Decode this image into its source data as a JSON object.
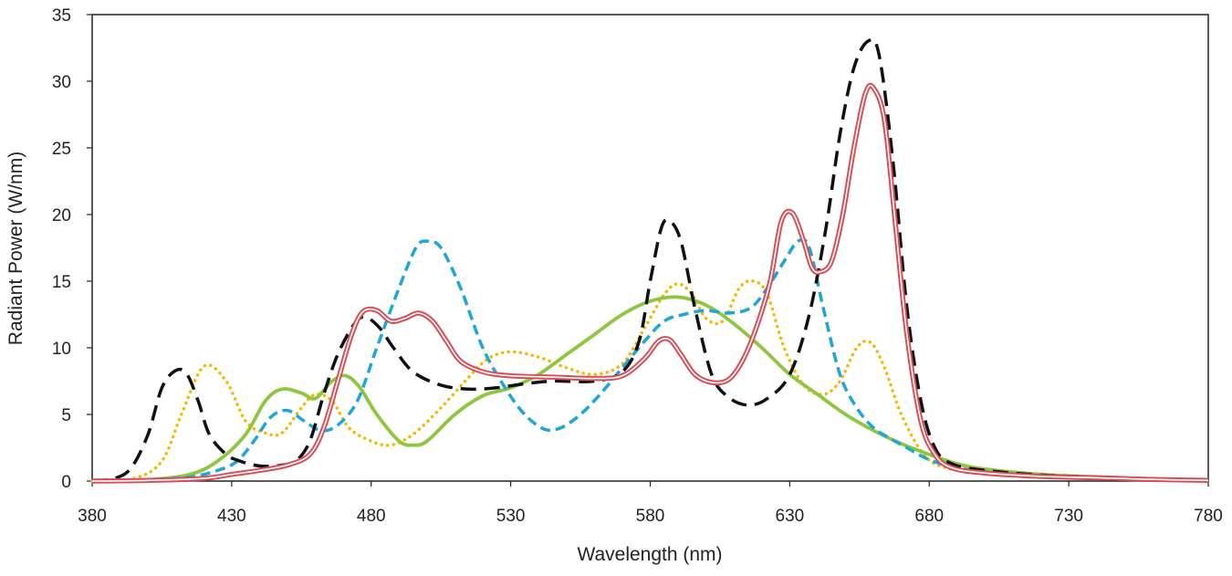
{
  "chart_data": {
    "type": "line",
    "title": "",
    "xlabel": "Wavelength (nm)",
    "ylabel": "Radiant Power (W/nm)",
    "xlim": [
      380,
      780
    ],
    "ylim": [
      0,
      35
    ],
    "xticks": [
      380,
      430,
      480,
      530,
      580,
      630,
      680,
      730,
      780
    ],
    "yticks": [
      0,
      5,
      10,
      15,
      20,
      25,
      30,
      35
    ],
    "grid": false,
    "legend": "none",
    "series": [
      {
        "color": "#f5b800",
        "dash": "dotted",
        "points": [
          [
            380,
            0
          ],
          [
            395,
            0.2
          ],
          [
            405,
            1.5
          ],
          [
            412,
            5
          ],
          [
            420,
            8.6
          ],
          [
            428,
            7.5
          ],
          [
            435,
            4.5
          ],
          [
            442,
            3.6
          ],
          [
            448,
            3.6
          ],
          [
            455,
            5.5
          ],
          [
            460,
            6.5
          ],
          [
            466,
            6
          ],
          [
            472,
            4
          ],
          [
            480,
            3
          ],
          [
            487,
            2.7
          ],
          [
            495,
            3.5
          ],
          [
            505,
            5.5
          ],
          [
            515,
            7.8
          ],
          [
            522,
            9.2
          ],
          [
            530,
            9.7
          ],
          [
            540,
            9.3
          ],
          [
            550,
            8.5
          ],
          [
            560,
            8
          ],
          [
            570,
            8.8
          ],
          [
            578,
            11.5
          ],
          [
            585,
            14
          ],
          [
            590,
            14.8
          ],
          [
            595,
            14
          ],
          [
            600,
            12.2
          ],
          [
            606,
            12
          ],
          [
            612,
            14.5
          ],
          [
            617,
            15
          ],
          [
            622,
            14
          ],
          [
            628,
            10
          ],
          [
            635,
            7.2
          ],
          [
            642,
            6.5
          ],
          [
            648,
            7.5
          ],
          [
            654,
            10
          ],
          [
            659,
            10.4
          ],
          [
            664,
            8.5
          ],
          [
            670,
            5
          ],
          [
            678,
            2
          ],
          [
            686,
            1
          ],
          [
            700,
            0.7
          ],
          [
            720,
            0.5
          ],
          [
            740,
            0.3
          ],
          [
            760,
            0.15
          ],
          [
            780,
            0.05
          ]
        ]
      },
      {
        "color": "#8dc63f",
        "dash": "solid",
        "points": [
          [
            380,
            0
          ],
          [
            400,
            0.1
          ],
          [
            415,
            0.5
          ],
          [
            425,
            1.5
          ],
          [
            435,
            3.5
          ],
          [
            442,
            6
          ],
          [
            448,
            6.9
          ],
          [
            455,
            6.6
          ],
          [
            460,
            6.2
          ],
          [
            466,
            7.5
          ],
          [
            471,
            7.9
          ],
          [
            476,
            7
          ],
          [
            482,
            5
          ],
          [
            490,
            3
          ],
          [
            495,
            2.7
          ],
          [
            500,
            3
          ],
          [
            510,
            5
          ],
          [
            520,
            6.4
          ],
          [
            530,
            7
          ],
          [
            540,
            8
          ],
          [
            550,
            9.5
          ],
          [
            560,
            11
          ],
          [
            570,
            12.5
          ],
          [
            580,
            13.5
          ],
          [
            590,
            13.8
          ],
          [
            600,
            13.2
          ],
          [
            610,
            11.8
          ],
          [
            620,
            10
          ],
          [
            630,
            8
          ],
          [
            640,
            6.5
          ],
          [
            650,
            5
          ],
          [
            660,
            3.8
          ],
          [
            670,
            2.8
          ],
          [
            680,
            2
          ],
          [
            690,
            1.3
          ],
          [
            700,
            0.9
          ],
          [
            720,
            0.5
          ],
          [
            740,
            0.3
          ],
          [
            760,
            0.1
          ],
          [
            780,
            0.05
          ]
        ]
      },
      {
        "color": "#1fa6d8",
        "dash": "dashed",
        "points": [
          [
            380,
            0
          ],
          [
            400,
            0.1
          ],
          [
            415,
            0.3
          ],
          [
            425,
            0.8
          ],
          [
            432,
            1.5
          ],
          [
            438,
            3
          ],
          [
            444,
            4.8
          ],
          [
            450,
            5.3
          ],
          [
            456,
            4.5
          ],
          [
            462,
            3.8
          ],
          [
            468,
            4.2
          ],
          [
            475,
            6
          ],
          [
            482,
            10
          ],
          [
            490,
            14.5
          ],
          [
            496,
            17.5
          ],
          [
            500,
            18
          ],
          [
            505,
            17.5
          ],
          [
            512,
            14.5
          ],
          [
            520,
            10
          ],
          [
            528,
            7
          ],
          [
            535,
            5
          ],
          [
            542,
            3.9
          ],
          [
            548,
            4
          ],
          [
            555,
            5
          ],
          [
            562,
            6.5
          ],
          [
            570,
            8.5
          ],
          [
            578,
            10.5
          ],
          [
            585,
            12
          ],
          [
            592,
            12.5
          ],
          [
            600,
            12.8
          ],
          [
            608,
            12.6
          ],
          [
            616,
            13
          ],
          [
            622,
            14.5
          ],
          [
            628,
            16.5
          ],
          [
            633,
            18
          ],
          [
            637,
            17.5
          ],
          [
            642,
            13
          ],
          [
            648,
            8
          ],
          [
            654,
            5.5
          ],
          [
            660,
            4
          ],
          [
            666,
            3.2
          ],
          [
            672,
            2.5
          ],
          [
            680,
            1.6
          ],
          [
            690,
            1
          ],
          [
            700,
            0.7
          ],
          [
            720,
            0.4
          ],
          [
            740,
            0.3
          ],
          [
            760,
            0.15
          ],
          [
            780,
            0.05
          ]
        ]
      },
      {
        "color": "#111111",
        "dash": "longdash",
        "points": [
          [
            380,
            0
          ],
          [
            388,
            0.2
          ],
          [
            394,
            1
          ],
          [
            400,
            3.5
          ],
          [
            405,
            7
          ],
          [
            410,
            8.3
          ],
          [
            414,
            8
          ],
          [
            418,
            6
          ],
          [
            422,
            3.5
          ],
          [
            428,
            2
          ],
          [
            433,
            1.5
          ],
          [
            438,
            1.2
          ],
          [
            443,
            1.1
          ],
          [
            448,
            1.2
          ],
          [
            453,
            1.5
          ],
          [
            458,
            3
          ],
          [
            463,
            6.5
          ],
          [
            468,
            9.5
          ],
          [
            474,
            11.8
          ],
          [
            478,
            12.3
          ],
          [
            483,
            11.5
          ],
          [
            488,
            10
          ],
          [
            495,
            8.2
          ],
          [
            505,
            7.2
          ],
          [
            515,
            6.9
          ],
          [
            525,
            7
          ],
          [
            535,
            7.3
          ],
          [
            545,
            7.5
          ],
          [
            560,
            7.5
          ],
          [
            570,
            8.2
          ],
          [
            576,
            10.5
          ],
          [
            580,
            15
          ],
          [
            584,
            19
          ],
          [
            587,
            19.5
          ],
          [
            591,
            18
          ],
          [
            596,
            13
          ],
          [
            602,
            8
          ],
          [
            608,
            6.3
          ],
          [
            615,
            5.7
          ],
          [
            622,
            6.2
          ],
          [
            630,
            8
          ],
          [
            637,
            12.5
          ],
          [
            643,
            19
          ],
          [
            648,
            26
          ],
          [
            653,
            31
          ],
          [
            658,
            33
          ],
          [
            662,
            32
          ],
          [
            667,
            24
          ],
          [
            672,
            13
          ],
          [
            677,
            6
          ],
          [
            682,
            2.5
          ],
          [
            688,
            1.3
          ],
          [
            700,
            0.8
          ],
          [
            720,
            0.45
          ],
          [
            740,
            0.3
          ],
          [
            760,
            0.15
          ],
          [
            780,
            0.05
          ]
        ]
      },
      {
        "color": "#d84c56",
        "dash": "double",
        "points": [
          [
            380,
            0
          ],
          [
            400,
            0.05
          ],
          [
            420,
            0.2
          ],
          [
            430,
            0.5
          ],
          [
            440,
            0.8
          ],
          [
            450,
            1.2
          ],
          [
            458,
            2
          ],
          [
            463,
            4
          ],
          [
            468,
            7.5
          ],
          [
            473,
            11
          ],
          [
            477,
            12.7
          ],
          [
            482,
            12.8
          ],
          [
            487,
            12
          ],
          [
            492,
            12.2
          ],
          [
            497,
            12.6
          ],
          [
            502,
            12
          ],
          [
            507,
            10.5
          ],
          [
            512,
            9
          ],
          [
            520,
            8.2
          ],
          [
            530,
            7.9
          ],
          [
            545,
            7.8
          ],
          [
            560,
            7.7
          ],
          [
            570,
            7.9
          ],
          [
            578,
            9.2
          ],
          [
            583,
            10.5
          ],
          [
            587,
            10.6
          ],
          [
            591,
            9.5
          ],
          [
            596,
            8
          ],
          [
            602,
            7.4
          ],
          [
            608,
            7.6
          ],
          [
            613,
            9
          ],
          [
            618,
            11.5
          ],
          [
            623,
            15
          ],
          [
            627,
            19.5
          ],
          [
            631,
            20.1
          ],
          [
            635,
            18
          ],
          [
            638,
            16
          ],
          [
            641,
            15.7
          ],
          [
            645,
            16.5
          ],
          [
            649,
            20
          ],
          [
            653,
            25
          ],
          [
            657,
            29
          ],
          [
            660,
            29.5
          ],
          [
            664,
            27
          ],
          [
            668,
            19
          ],
          [
            672,
            11
          ],
          [
            677,
            4.5
          ],
          [
            682,
            2
          ],
          [
            688,
            1
          ],
          [
            700,
            0.6
          ],
          [
            720,
            0.35
          ],
          [
            740,
            0.25
          ],
          [
            760,
            0.12
          ],
          [
            780,
            0.05
          ]
        ]
      }
    ]
  }
}
